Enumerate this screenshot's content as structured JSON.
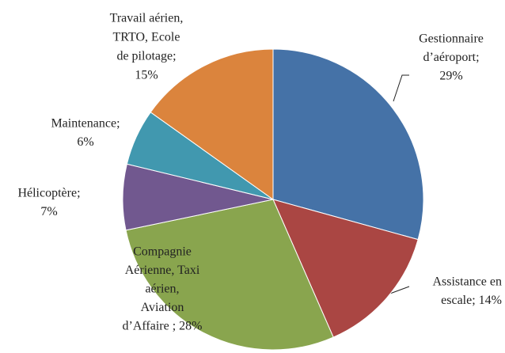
{
  "chart_data": {
    "type": "pie",
    "values": [
      29,
      14,
      28,
      7,
      6,
      15
    ],
    "value_labels": [
      [
        "Gestionnaire",
        "d’aéroport;",
        "29%"
      ],
      [
        "Assistance en",
        "escale; 14%"
      ],
      [
        "Compagnie",
        "Aérienne, Taxi",
        "aérien,",
        "Aviation",
        "d’Affaire ; 28%"
      ],
      [
        "Hélicoptère;",
        "7%"
      ],
      [
        "Maintenance;",
        "6%"
      ],
      [
        "Travail aérien,",
        "TRTO, Ecole",
        "de pilotage;",
        "15%"
      ]
    ],
    "colors": [
      "#4572a7",
      "#aa4643",
      "#89a54e",
      "#71588f",
      "#4198af",
      "#db843d"
    ]
  }
}
